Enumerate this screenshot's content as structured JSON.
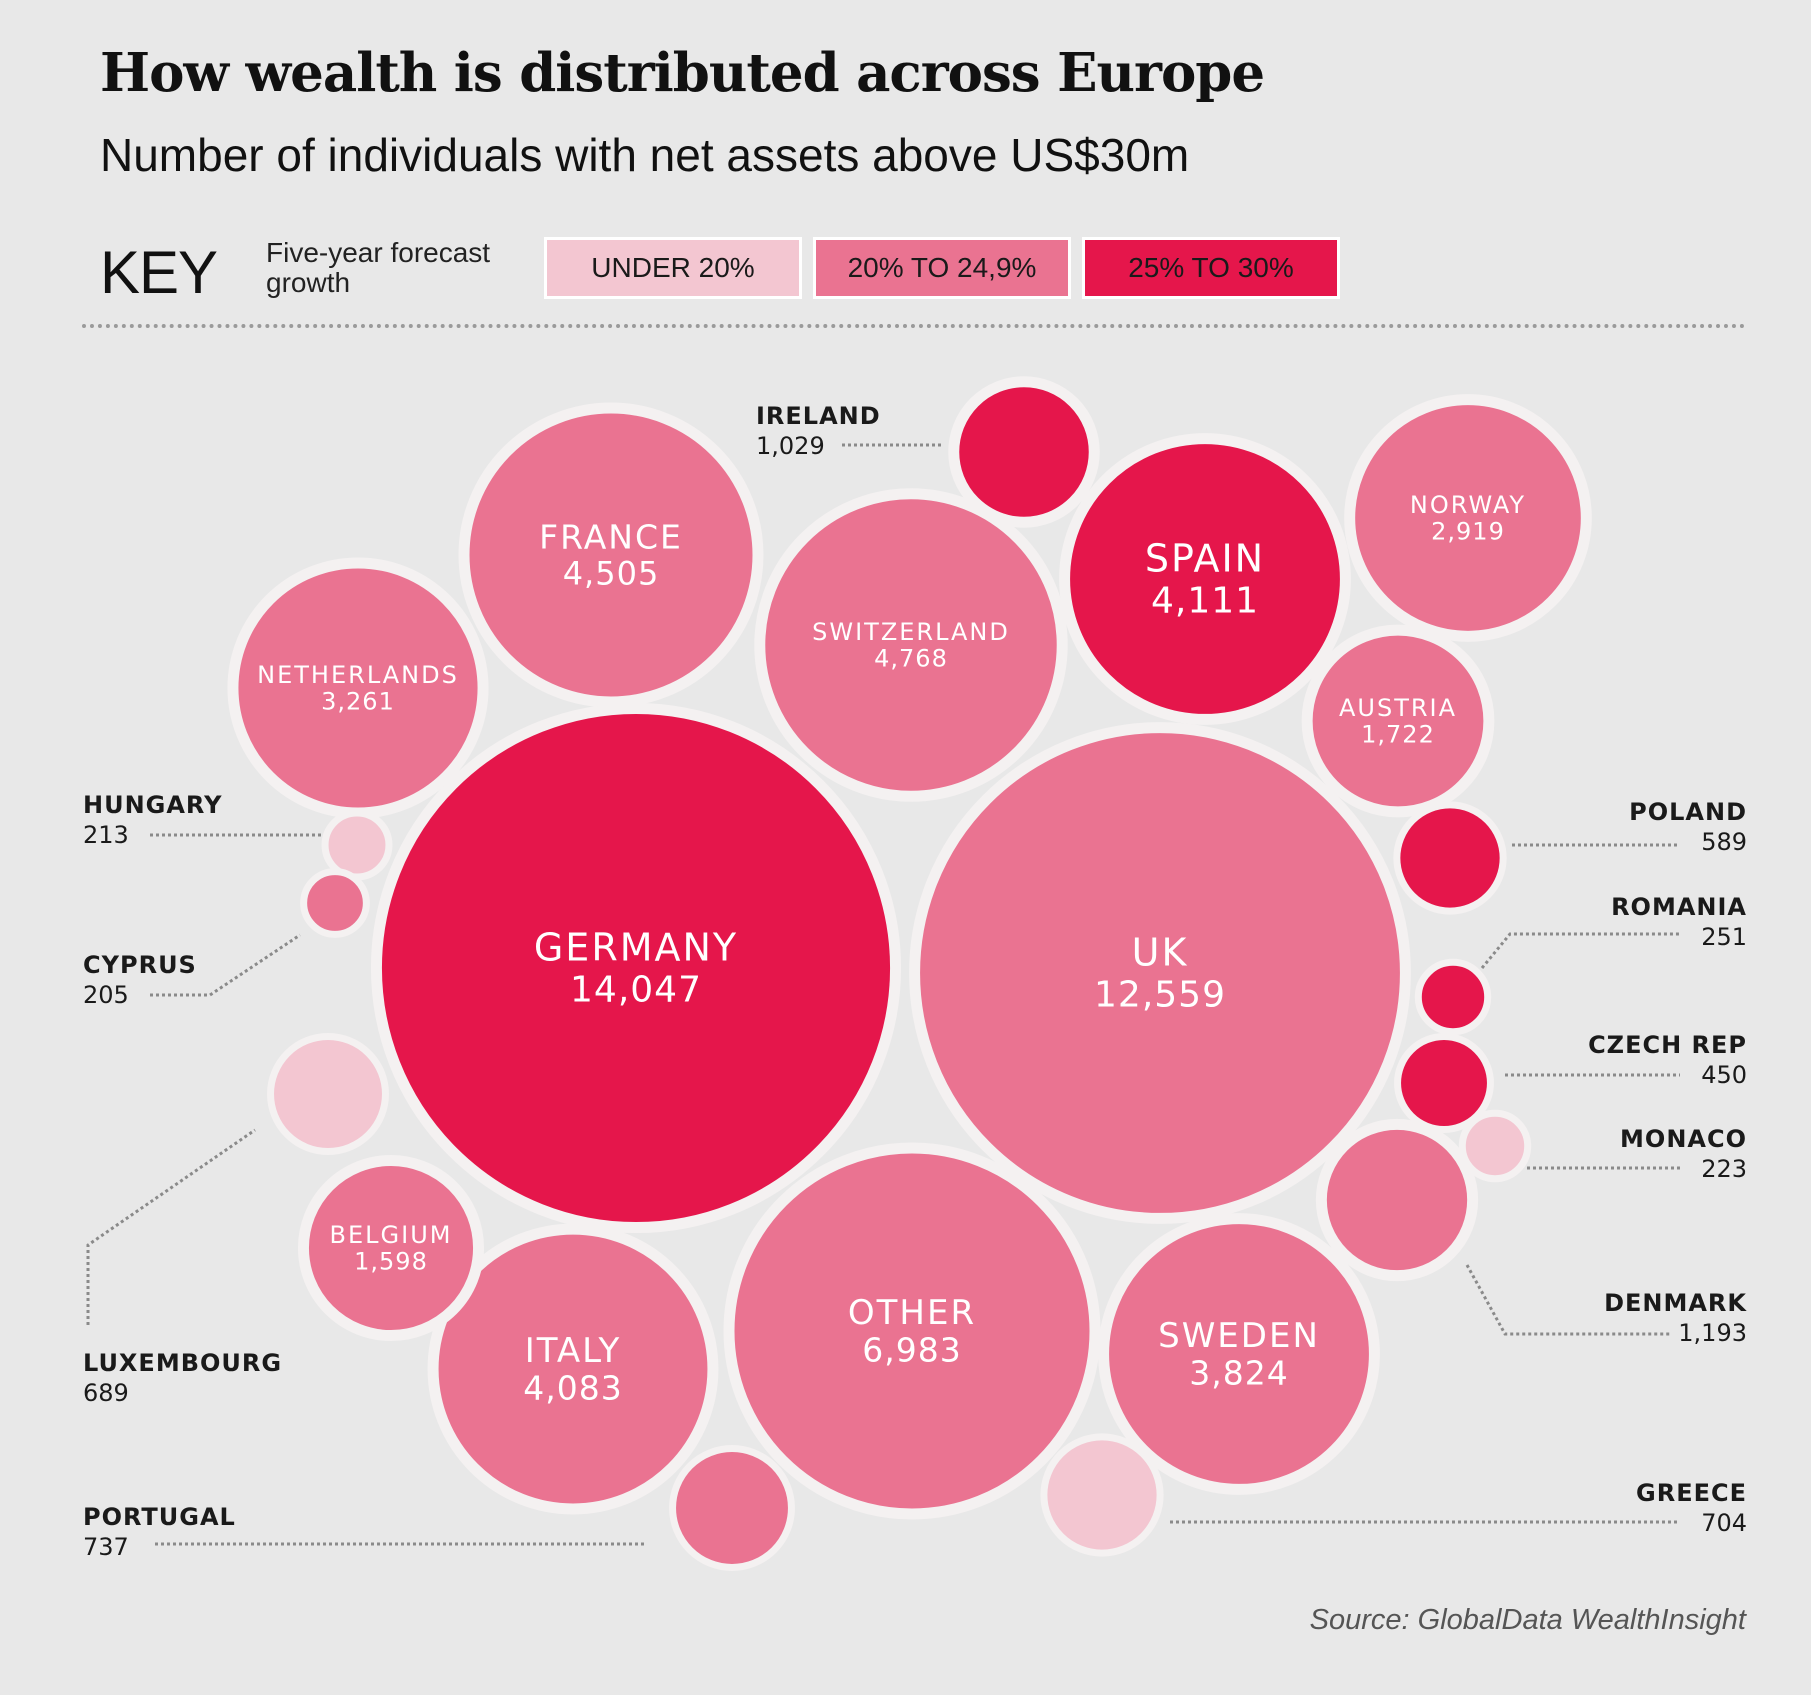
{
  "title": "How wealth is distributed across Europe",
  "subtitle": "Number of individuals with net assets above US$30m",
  "key": {
    "label": "KEY",
    "description": "Five-year forecast growth",
    "categories": [
      {
        "id": "low",
        "label": "UNDER 20%",
        "color": "#f3c6d1"
      },
      {
        "id": "mid",
        "label": "20% TO 24,9%",
        "color": "#ea7391"
      },
      {
        "id": "high",
        "label": "25% TO 30%",
        "color": "#e5164b"
      }
    ]
  },
  "source": "Source: GlobalData WealthInsight",
  "chart_data": {
    "type": "bubble",
    "title": "How wealth is distributed across Europe",
    "subtitle": "Number of individuals with net assets above US$30m",
    "legend_title": "Five-year forecast growth",
    "legend_placement": "top",
    "series": [
      {
        "name": "GERMANY",
        "value": 14047,
        "growth": "25% TO 30%"
      },
      {
        "name": "UK",
        "value": 12559,
        "growth": "20% TO 24,9%"
      },
      {
        "name": "OTHER",
        "value": 6983,
        "growth": "20% TO 24,9%"
      },
      {
        "name": "SWITZERLAND",
        "value": 4768,
        "growth": "20% TO 24,9%"
      },
      {
        "name": "FRANCE",
        "value": 4505,
        "growth": "20% TO 24,9%"
      },
      {
        "name": "SPAIN",
        "value": 4111,
        "growth": "25% TO 30%"
      },
      {
        "name": "ITALY",
        "value": 4083,
        "growth": "20% TO 24,9%"
      },
      {
        "name": "SWEDEN",
        "value": 3824,
        "growth": "20% TO 24,9%"
      },
      {
        "name": "NETHERLANDS",
        "value": 3261,
        "growth": "20% TO 24,9%"
      },
      {
        "name": "NORWAY",
        "value": 2919,
        "growth": "20% TO 24,9%"
      },
      {
        "name": "AUSTRIA",
        "value": 1722,
        "growth": "20% TO 24,9%"
      },
      {
        "name": "BELGIUM",
        "value": 1598,
        "growth": "20% TO 24,9%"
      },
      {
        "name": "DENMARK",
        "value": 1193,
        "growth": "20% TO 24,9%"
      },
      {
        "name": "IRELAND",
        "value": 1029,
        "growth": "25% TO 30%"
      },
      {
        "name": "PORTUGAL",
        "value": 737,
        "growth": "20% TO 24,9%"
      },
      {
        "name": "GREECE",
        "value": 704,
        "growth": "UNDER 20%"
      },
      {
        "name": "LUXEMBOURG",
        "value": 689,
        "growth": "UNDER 20%"
      },
      {
        "name": "POLAND",
        "value": 589,
        "growth": "25% TO 30%"
      },
      {
        "name": "CZECH REP",
        "value": 450,
        "growth": "25% TO 30%"
      },
      {
        "name": "ROMANIA",
        "value": 251,
        "growth": "25% TO 30%"
      },
      {
        "name": "MONACO",
        "value": 223,
        "growth": "UNDER 20%"
      },
      {
        "name": "HUNGARY",
        "value": 213,
        "growth": "UNDER 20%"
      },
      {
        "name": "CYPRUS",
        "value": 205,
        "growth": "20% TO 24,9%"
      }
    ]
  }
}
